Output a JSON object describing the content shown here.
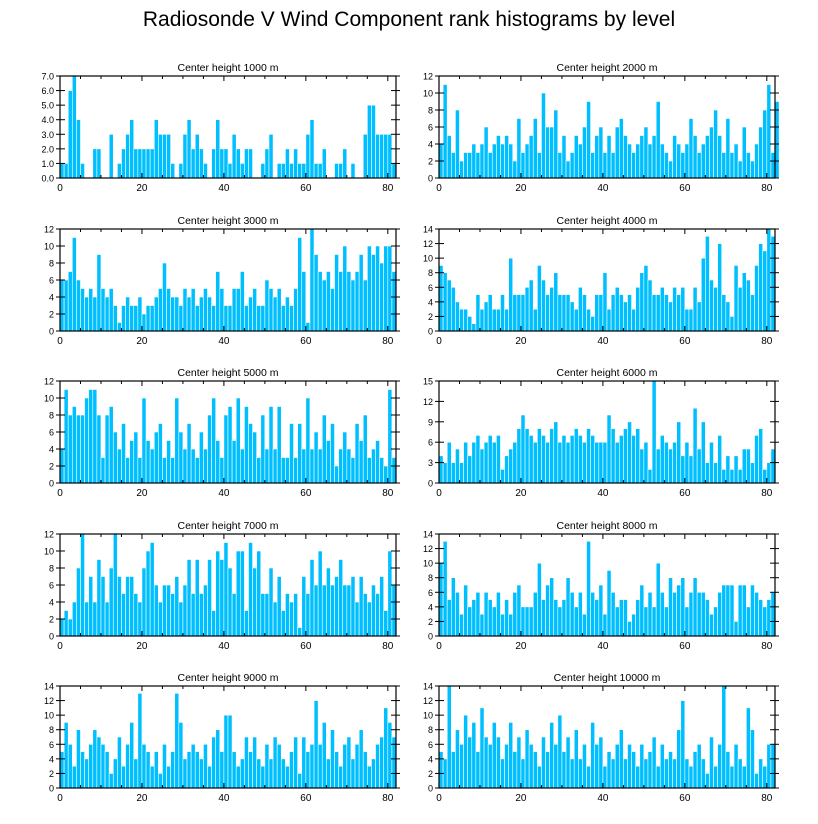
{
  "title": "Radiosonde V Wind Component rank histograms by level",
  "colors": {
    "bar": "#00bfff",
    "bar_edge": "#ffffff",
    "axis": "#000000"
  },
  "chart_data": [
    {
      "type": "bar",
      "title": "Center height 1000 m",
      "xlim": [
        0,
        82
      ],
      "ylim": [
        0,
        7
      ],
      "xticks": [
        0,
        20,
        40,
        60,
        80
      ],
      "yticks": [
        0,
        1,
        2,
        3,
        4,
        5,
        6,
        7
      ],
      "ytick_labels": [
        "0.0",
        "1.0",
        "2.0",
        "3.0",
        "4.0",
        "5.0",
        "6.0",
        "7.0"
      ],
      "values": [
        1,
        1,
        6,
        7,
        4,
        1,
        0,
        0,
        2,
        2,
        0,
        0,
        3,
        0,
        1,
        2,
        3,
        4,
        2,
        2,
        2,
        2,
        2,
        4,
        3,
        3,
        3,
        1,
        0,
        1,
        3,
        4,
        2,
        3,
        2,
        1,
        0,
        2,
        4,
        2,
        2,
        1,
        3,
        2,
        1,
        2,
        2,
        0,
        0,
        1,
        2,
        3,
        0,
        1,
        1,
        2,
        1,
        2,
        1,
        1,
        3,
        4,
        1,
        1,
        2,
        0,
        0,
        1,
        1,
        2,
        0,
        1,
        0,
        0,
        3,
        5,
        5,
        3,
        3,
        3,
        3,
        1
      ]
    },
    {
      "type": "bar",
      "title": "Center height 2000 m",
      "xlim": [
        0,
        82
      ],
      "ylim": [
        0,
        12
      ],
      "xticks": [
        0,
        20,
        40,
        60,
        80
      ],
      "yticks": [
        0,
        2,
        4,
        6,
        8,
        10,
        12
      ],
      "ytick_labels": [
        "0",
        "2",
        "4",
        "6",
        "8",
        "10",
        "12"
      ],
      "values": [
        4,
        11,
        5,
        3,
        8,
        2,
        3,
        3,
        4,
        3,
        4,
        6,
        3,
        4,
        5,
        4,
        5,
        4,
        2,
        7,
        3,
        4,
        5,
        7,
        3,
        10,
        6,
        6,
        8,
        3,
        5,
        2,
        3,
        5,
        4,
        6,
        9,
        3,
        5,
        6,
        3,
        5,
        3,
        6,
        7,
        5,
        4,
        3,
        4,
        5,
        6,
        4,
        5,
        9,
        4,
        3,
        2,
        5,
        4,
        3,
        4,
        7,
        5,
        3,
        4,
        5,
        6,
        8,
        5,
        3,
        7,
        3,
        4,
        2,
        6,
        3,
        2,
        4,
        6,
        8,
        11,
        3,
        9
      ]
    },
    {
      "type": "bar",
      "title": "Center height 3000 m",
      "xlim": [
        0,
        82
      ],
      "ylim": [
        0,
        12
      ],
      "xticks": [
        0,
        20,
        40,
        60,
        80
      ],
      "yticks": [
        0,
        2,
        4,
        6,
        8,
        10,
        12
      ],
      "ytick_labels": [
        "0",
        "2",
        "4",
        "6",
        "8",
        "10",
        "12"
      ],
      "values": [
        6,
        6,
        7,
        11,
        6,
        5,
        4,
        5,
        4,
        9,
        5,
        4,
        5,
        3,
        1,
        3,
        4,
        3,
        3,
        4,
        2,
        3,
        3,
        4,
        5,
        8,
        5,
        4,
        4,
        3,
        5,
        4,
        5,
        3,
        4,
        5,
        4,
        3,
        7,
        5,
        3,
        3,
        5,
        5,
        7,
        3,
        4,
        5,
        3,
        3,
        6,
        5,
        4,
        5,
        3,
        4,
        3,
        5,
        11,
        7,
        1,
        12,
        9,
        7,
        6,
        7,
        5,
        9,
        7,
        10,
        7,
        6,
        7,
        9,
        6,
        10,
        9,
        10,
        8,
        10,
        10,
        7
      ]
    },
    {
      "type": "bar",
      "title": "Center height 4000 m",
      "xlim": [
        0,
        82
      ],
      "ylim": [
        0,
        14
      ],
      "xticks": [
        0,
        20,
        40,
        60,
        80
      ],
      "yticks": [
        0,
        2,
        4,
        6,
        8,
        10,
        12,
        14
      ],
      "ytick_labels": [
        "0",
        "2",
        "4",
        "6",
        "8",
        "10",
        "12",
        "14"
      ],
      "values": [
        9,
        8,
        7,
        6,
        4,
        3,
        3,
        2,
        1,
        5,
        3,
        4,
        5,
        3,
        3,
        5,
        3,
        10,
        5,
        5,
        5,
        6,
        7,
        3,
        9,
        7,
        5,
        6,
        8,
        5,
        5,
        5,
        4,
        3,
        6,
        5,
        3,
        2,
        5,
        5,
        8,
        3,
        5,
        6,
        5,
        4,
        5,
        3,
        6,
        8,
        9,
        7,
        5,
        5,
        6,
        5,
        4,
        6,
        5,
        6,
        3,
        3,
        6,
        4,
        10,
        13,
        7,
        6,
        12,
        5,
        4,
        2,
        9,
        6,
        8,
        7,
        5,
        9,
        12,
        11,
        14,
        13
      ]
    },
    {
      "type": "bar",
      "title": "Center height 5000 m",
      "xlim": [
        0,
        82
      ],
      "ylim": [
        0,
        12
      ],
      "xticks": [
        0,
        20,
        40,
        60,
        80
      ],
      "yticks": [
        0,
        2,
        4,
        6,
        8,
        10,
        12
      ],
      "ytick_labels": [
        "0",
        "2",
        "4",
        "6",
        "8",
        "10",
        "12"
      ],
      "values": [
        4,
        11,
        8,
        9,
        8,
        8,
        10,
        11,
        11,
        8,
        3,
        8,
        9,
        6,
        4,
        7,
        3,
        5,
        6,
        3,
        10,
        5,
        4,
        6,
        7,
        3,
        5,
        3,
        10,
        6,
        4,
        7,
        4,
        3,
        6,
        4,
        8,
        10,
        5,
        3,
        8,
        9,
        5,
        10,
        4,
        9,
        7,
        6,
        3,
        8,
        4,
        9,
        4,
        9,
        3,
        3,
        7,
        3,
        7,
        4,
        10,
        4,
        6,
        4,
        8,
        5,
        7,
        2,
        4,
        6,
        4,
        3,
        7,
        5,
        8,
        3,
        4,
        5,
        3,
        2,
        11,
        3
      ]
    },
    {
      "type": "bar",
      "title": "Center height 6000 m",
      "xlim": [
        0,
        82
      ],
      "ylim": [
        0,
        15
      ],
      "xticks": [
        0,
        20,
        40,
        60,
        80
      ],
      "yticks": [
        0,
        3,
        6,
        9,
        12,
        15
      ],
      "ytick_labels": [
        "0",
        "3",
        "6",
        "9",
        "12",
        "15"
      ],
      "values": [
        4,
        3,
        6,
        3,
        5,
        3,
        6,
        4,
        6,
        7,
        5,
        6,
        7,
        6,
        7,
        2,
        4,
        5,
        6,
        8,
        10,
        8,
        7,
        6,
        8,
        7,
        6,
        8,
        9,
        6,
        7,
        6,
        7,
        8,
        7,
        6,
        8,
        7,
        6,
        6,
        6,
        10,
        8,
        6,
        7,
        8,
        9,
        7,
        8,
        5,
        6,
        2,
        15,
        5,
        7,
        6,
        5,
        6,
        9,
        4,
        6,
        4,
        11,
        5,
        9,
        3,
        6,
        3,
        7,
        2,
        4,
        2,
        4,
        2,
        5,
        5,
        3,
        7,
        8,
        2,
        3,
        5
      ]
    },
    {
      "type": "bar",
      "title": "Center height 7000 m",
      "xlim": [
        0,
        82
      ],
      "ylim": [
        0,
        12
      ],
      "xticks": [
        0,
        20,
        40,
        60,
        80
      ],
      "yticks": [
        0,
        2,
        4,
        6,
        8,
        10,
        12
      ],
      "ytick_labels": [
        "0",
        "2",
        "4",
        "6",
        "8",
        "10",
        "12"
      ],
      "values": [
        2,
        3,
        2,
        4,
        8,
        12,
        4,
        7,
        4,
        9,
        7,
        4,
        8,
        12,
        7,
        5,
        7,
        7,
        5,
        4,
        8,
        10,
        11,
        6,
        4,
        6,
        6,
        5,
        7,
        4,
        6,
        9,
        5,
        9,
        5,
        6,
        9,
        3,
        10,
        9,
        11,
        8,
        5,
        10,
        10,
        3,
        11,
        8,
        10,
        5,
        5,
        8,
        4,
        7,
        3,
        5,
        4,
        5,
        1,
        7,
        5,
        9,
        6,
        10,
        6,
        8,
        6,
        7,
        9,
        6,
        6,
        7,
        4,
        7,
        5,
        4,
        6,
        5,
        7,
        3,
        10,
        6
      ]
    },
    {
      "type": "bar",
      "title": "Center height 8000 m",
      "xlim": [
        0,
        82
      ],
      "ylim": [
        0,
        14
      ],
      "xticks": [
        0,
        20,
        40,
        60,
        80
      ],
      "yticks": [
        0,
        2,
        4,
        6,
        8,
        10,
        12,
        14
      ],
      "ytick_labels": [
        "0",
        "2",
        "4",
        "6",
        "8",
        "10",
        "12",
        "14"
      ],
      "values": [
        10,
        13,
        5,
        8,
        6,
        3,
        7,
        4,
        5,
        6,
        3,
        6,
        5,
        4,
        6,
        3,
        5,
        3,
        6,
        7,
        4,
        4,
        4,
        6,
        10,
        5,
        7,
        8,
        5,
        4,
        5,
        8,
        6,
        4,
        6,
        3,
        13,
        6,
        5,
        7,
        3,
        9,
        6,
        4,
        5,
        5,
        2,
        3,
        5,
        7,
        4,
        6,
        4,
        10,
        6,
        4,
        8,
        6,
        7,
        8,
        4,
        6,
        8,
        6,
        6,
        5,
        3,
        4,
        6,
        7,
        7,
        7,
        2,
        7,
        7,
        4,
        7,
        6,
        5,
        4,
        5,
        6
      ]
    },
    {
      "type": "bar",
      "title": "Center height 9000 m",
      "xlim": [
        0,
        82
      ],
      "ylim": [
        0,
        14
      ],
      "xticks": [
        0,
        20,
        40,
        60,
        80
      ],
      "yticks": [
        0,
        2,
        4,
        6,
        8,
        10,
        12,
        14
      ],
      "ytick_labels": [
        "0",
        "2",
        "4",
        "6",
        "8",
        "10",
        "12",
        "14"
      ],
      "values": [
        5,
        9,
        6,
        3,
        8,
        5,
        4,
        6,
        8,
        7,
        6,
        5,
        2,
        4,
        7,
        3,
        6,
        9,
        4,
        13,
        6,
        5,
        3,
        5,
        2,
        6,
        3,
        5,
        13,
        9,
        4,
        5,
        6,
        5,
        4,
        6,
        3,
        7,
        8,
        5,
        10,
        10,
        5,
        3,
        4,
        7,
        5,
        7,
        4,
        3,
        6,
        4,
        7,
        6,
        4,
        3,
        5,
        7,
        2,
        7,
        5,
        6,
        12,
        6,
        9,
        4,
        8,
        5,
        3,
        6,
        7,
        4,
        6,
        8,
        5,
        3,
        4,
        6,
        7,
        11,
        9,
        7
      ]
    },
    {
      "type": "bar",
      "title": "Center height 10000 m",
      "xlim": [
        0,
        82
      ],
      "ylim": [
        0,
        14
      ],
      "xticks": [
        0,
        20,
        40,
        60,
        80
      ],
      "yticks": [
        0,
        2,
        4,
        6,
        8,
        10,
        12,
        14
      ],
      "ytick_labels": [
        "0",
        "2",
        "4",
        "6",
        "8",
        "10",
        "12",
        "14"
      ],
      "values": [
        5,
        4,
        14,
        5,
        8,
        6,
        10,
        7,
        9,
        5,
        11,
        7,
        6,
        9,
        7,
        4,
        6,
        9,
        5,
        7,
        4,
        8,
        6,
        5,
        3,
        7,
        5,
        9,
        6,
        10,
        5,
        7,
        4,
        8,
        4,
        6,
        3,
        9,
        6,
        7,
        3,
        5,
        4,
        6,
        8,
        4,
        6,
        5,
        3,
        6,
        4,
        5,
        7,
        3,
        6,
        4,
        5,
        4,
        8,
        12,
        4,
        3,
        5,
        6,
        4,
        2,
        7,
        3,
        6,
        14,
        5,
        3,
        6,
        4,
        3,
        11,
        8,
        2,
        4,
        3,
        6,
        6
      ]
    }
  ]
}
